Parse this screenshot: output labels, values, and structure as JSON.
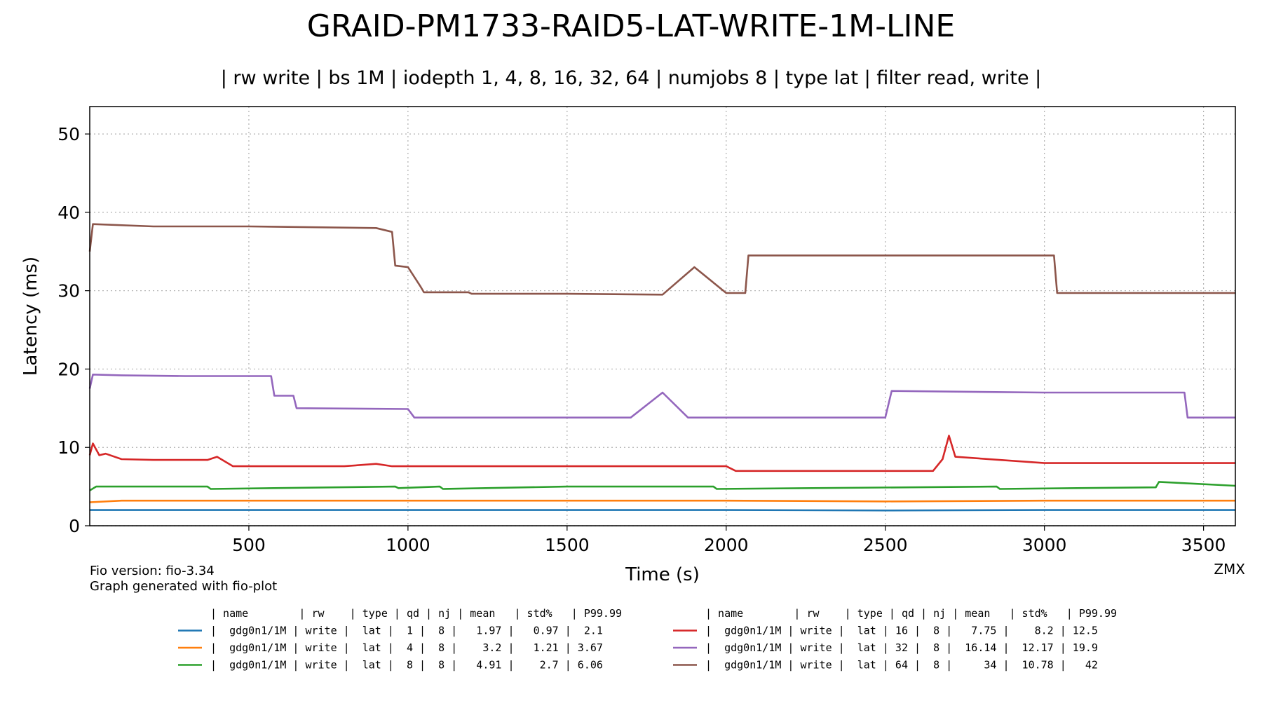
{
  "chart_data": {
    "type": "line",
    "title": "GRAID-PM1733-RAID5-LAT-WRITE-1M-LINE",
    "subtitle": "| rw write | bs 1M | iodepth 1, 4, 8, 16, 32, 64 | numjobs 8 | type lat | filter read, write |",
    "xlabel": "Time (s)",
    "ylabel": "Latency (ms)",
    "xlim": [
      0,
      3600
    ],
    "ylim": [
      0,
      53.5
    ],
    "xticks": [
      500,
      1000,
      1500,
      2000,
      2500,
      3000,
      3500
    ],
    "yticks": [
      0,
      10,
      20,
      30,
      40,
      50
    ],
    "grid": true,
    "legend_placement": "bottom",
    "legend_header": "| name        | rw    | type | qd | nj | mean   | std%   | P99.99",
    "series": [
      {
        "name": "gdg0n1/1M",
        "color": "#1f77b4",
        "legend_row": "|  gdg0n1/1M | write |  lat |  1 |  8 |   1.97 |   0.97 |  2.1",
        "x": [
          0,
          100,
          500,
          1000,
          1500,
          2000,
          2500,
          3000,
          3600
        ],
        "y": [
          2.0,
          2.0,
          2.0,
          2.0,
          2.0,
          2.0,
          1.95,
          2.0,
          2.0
        ]
      },
      {
        "name": "gdg0n1/1M",
        "color": "#ff7f0e",
        "legend_row": "|  gdg0n1/1M | write |  lat |  4 |  8 |    3.2 |   1.21 | 3.67",
        "x": [
          0,
          100,
          500,
          1000,
          1500,
          2000,
          2500,
          3000,
          3600
        ],
        "y": [
          3.0,
          3.2,
          3.2,
          3.2,
          3.2,
          3.2,
          3.1,
          3.2,
          3.2
        ]
      },
      {
        "name": "gdg0n1/1M",
        "color": "#2ca02c",
        "legend_row": "|  gdg0n1/1M | write |  lat |  8 |  8 |   4.91 |    2.7 | 6.06",
        "x": [
          0,
          20,
          370,
          380,
          960,
          970,
          1100,
          1110,
          1500,
          1960,
          1970,
          2850,
          2860,
          3350,
          3360,
          3600
        ],
        "y": [
          4.5,
          5.0,
          5.0,
          4.7,
          5.0,
          4.8,
          5.0,
          4.7,
          5.0,
          5.0,
          4.7,
          5.0,
          4.7,
          4.9,
          5.6,
          5.1
        ]
      },
      {
        "name": "gdg0n1/1M",
        "color": "#d62728",
        "legend_row": "|  gdg0n1/1M | write |  lat | 16 |  8 |   7.75 |    8.2 | 12.5",
        "x": [
          0,
          10,
          30,
          50,
          100,
          200,
          370,
          400,
          450,
          800,
          900,
          950,
          1000,
          1500,
          2000,
          2030,
          2500,
          2650,
          2680,
          2700,
          2720,
          3000,
          3600
        ],
        "y": [
          9.0,
          10.5,
          9.0,
          9.2,
          8.5,
          8.4,
          8.4,
          8.8,
          7.6,
          7.6,
          7.9,
          7.6,
          7.6,
          7.6,
          7.6,
          7.0,
          7.0,
          7.0,
          8.5,
          11.5,
          8.8,
          8.0,
          8.0
        ]
      },
      {
        "name": "gdg0n1/1M",
        "color": "#9467bd",
        "legend_row": "|  gdg0n1/1M | write |  lat | 32 |  8 |  16.14 |  12.17 | 19.9",
        "x": [
          0,
          10,
          100,
          300,
          570,
          580,
          640,
          650,
          1000,
          1020,
          1500,
          1700,
          1800,
          1880,
          2000,
          2500,
          2520,
          3000,
          3440,
          3450,
          3600
        ],
        "y": [
          17.5,
          19.3,
          19.2,
          19.1,
          19.1,
          16.6,
          16.6,
          15.0,
          14.9,
          13.8,
          13.8,
          13.8,
          17.0,
          13.8,
          13.8,
          13.8,
          17.2,
          17.0,
          17.0,
          13.8,
          13.8
        ]
      },
      {
        "name": "gdg0n1/1M",
        "color": "#8c564b",
        "legend_row": "|  gdg0n1/1M | write |  lat | 64 |  8 |     34 |  10.78 |   42",
        "x": [
          0,
          10,
          200,
          500,
          900,
          950,
          960,
          1000,
          1040,
          1050,
          1190,
          1200,
          1500,
          1800,
          1900,
          2000,
          2060,
          2070,
          2500,
          3000,
          3030,
          3040,
          3600
        ],
        "y": [
          35.0,
          38.5,
          38.2,
          38.2,
          38.0,
          37.5,
          33.2,
          33.0,
          30.5,
          29.8,
          29.8,
          29.6,
          29.6,
          29.5,
          33.0,
          29.7,
          29.7,
          34.5,
          34.5,
          34.5,
          34.5,
          29.7,
          29.7
        ]
      }
    ]
  },
  "footer": {
    "fio_version": "Fio version: fio-3.34",
    "generated_with": "Graph generated with fio-plot",
    "credit": "ZMX"
  }
}
